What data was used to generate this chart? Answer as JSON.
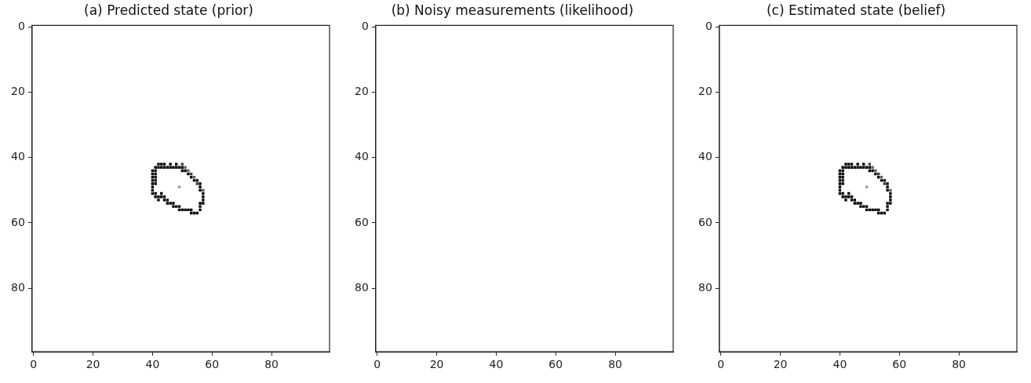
{
  "chart_data": [
    {
      "type": "scatter",
      "title": "(a) Predicted state (prior)",
      "marker": "square",
      "x": [
        42,
        43,
        44,
        46,
        48,
        50,
        41,
        42,
        43,
        44,
        45,
        46,
        47,
        48,
        49,
        50,
        51,
        40,
        41,
        50,
        51,
        52,
        40,
        41,
        52,
        53,
        40,
        41,
        53,
        54,
        40,
        41,
        54,
        55,
        40,
        41,
        55,
        56,
        40,
        49,
        56,
        40,
        56,
        57,
        40,
        41,
        43,
        57,
        41,
        42,
        43,
        44,
        57,
        42,
        44,
        45,
        57,
        45,
        46,
        47,
        56,
        57,
        47,
        48,
        49,
        56,
        49,
        50,
        51,
        52,
        53,
        56,
        53,
        54,
        55
      ],
      "values": [
        42,
        42,
        42,
        42,
        42,
        42,
        43,
        43,
        43,
        43,
        43,
        43,
        43,
        43,
        43,
        43,
        43,
        44,
        44,
        44,
        44,
        44,
        45,
        45,
        45,
        45,
        46,
        46,
        46,
        46,
        47,
        47,
        47,
        47,
        48,
        48,
        48,
        48,
        49,
        49,
        49,
        50,
        50,
        50,
        51,
        51,
        51,
        51,
        52,
        52,
        52,
        52,
        52,
        53,
        53,
        53,
        53,
        54,
        54,
        54,
        54,
        54,
        55,
        55,
        55,
        55,
        56,
        56,
        56,
        56,
        56,
        56,
        57,
        57,
        57
      ],
      "colors": [
        "#000000",
        "#000000",
        "#000000",
        "#000000",
        "#000000",
        "#404040",
        "#000000",
        "#000000",
        "#000000",
        "#000000",
        "#000000",
        "#000000",
        "#000000",
        "#000000",
        "#000000",
        "#000000",
        "#606060",
        "#000000",
        "#000000",
        "#000000",
        "#000000",
        "#606060",
        "#000000",
        "#000000",
        "#000000",
        "#404040",
        "#000000",
        "#000000",
        "#000000",
        "#606060",
        "#000000",
        "#000000",
        "#000000",
        "#000000",
        "#000000",
        "#000000",
        "#404040",
        "#000000",
        "#000000",
        "#a0a0a0",
        "#000000",
        "#000000",
        "#000000",
        "#606060",
        "#000000",
        "#000000",
        "#000000",
        "#000000",
        "#000000",
        "#000000",
        "#000000",
        "#000000",
        "#000000",
        "#000000",
        "#000000",
        "#000000",
        "#000000",
        "#000000",
        "#000000",
        "#000000",
        "#000000",
        "#000000",
        "#000000",
        "#000000",
        "#000000",
        "#000000",
        "#000000",
        "#000000",
        "#000000",
        "#000000",
        "#000000",
        "#000000",
        "#000000",
        "#000000",
        "#000000"
      ],
      "xlim": [
        -0.5,
        99.5
      ],
      "ylim": [
        99.5,
        -0.5
      ],
      "xticks": [
        0,
        20,
        40,
        60,
        80
      ],
      "yticks": [
        0,
        20,
        40,
        60,
        80
      ]
    },
    {
      "type": "scatter",
      "title": "(b) Noisy measurements (likelihood)",
      "marker": "square",
      "xlim": [
        -0.5,
        99.5
      ],
      "ylim": [
        99.5,
        -0.5
      ],
      "xticks": [
        0,
        20,
        40,
        60,
        80
      ],
      "yticks": [
        0,
        20,
        40,
        60,
        80
      ]
    },
    {
      "type": "scatter",
      "title": "(c) Estimated state (belief)",
      "marker": "square",
      "x": [
        42,
        43,
        44,
        46,
        48,
        50,
        41,
        42,
        43,
        44,
        45,
        46,
        47,
        48,
        49,
        50,
        51,
        40,
        41,
        50,
        51,
        52,
        40,
        41,
        52,
        53,
        40,
        41,
        53,
        54,
        40,
        41,
        54,
        55,
        40,
        41,
        55,
        56,
        40,
        49,
        56,
        40,
        56,
        57,
        40,
        41,
        43,
        57,
        41,
        42,
        43,
        44,
        57,
        42,
        44,
        45,
        57,
        45,
        46,
        47,
        56,
        57,
        47,
        48,
        49,
        56,
        49,
        50,
        51,
        52,
        53,
        56,
        53,
        54,
        55
      ],
      "values": [
        42,
        42,
        42,
        42,
        42,
        42,
        43,
        43,
        43,
        43,
        43,
        43,
        43,
        43,
        43,
        43,
        43,
        44,
        44,
        44,
        44,
        44,
        45,
        45,
        45,
        45,
        46,
        46,
        46,
        46,
        47,
        47,
        47,
        47,
        48,
        48,
        48,
        48,
        49,
        49,
        49,
        50,
        50,
        50,
        51,
        51,
        51,
        51,
        52,
        52,
        52,
        52,
        52,
        53,
        53,
        53,
        53,
        54,
        54,
        54,
        54,
        54,
        55,
        55,
        55,
        55,
        56,
        56,
        56,
        56,
        56,
        56,
        57,
        57,
        57
      ],
      "colors": [
        "#000000",
        "#000000",
        "#000000",
        "#000000",
        "#000000",
        "#404040",
        "#000000",
        "#000000",
        "#000000",
        "#000000",
        "#000000",
        "#000000",
        "#000000",
        "#000000",
        "#000000",
        "#000000",
        "#606060",
        "#000000",
        "#000000",
        "#000000",
        "#000000",
        "#606060",
        "#000000",
        "#000000",
        "#000000",
        "#404040",
        "#000000",
        "#000000",
        "#000000",
        "#606060",
        "#000000",
        "#000000",
        "#000000",
        "#000000",
        "#000000",
        "#000000",
        "#404040",
        "#000000",
        "#000000",
        "#a0a0a0",
        "#000000",
        "#000000",
        "#000000",
        "#606060",
        "#000000",
        "#000000",
        "#000000",
        "#000000",
        "#000000",
        "#000000",
        "#000000",
        "#000000",
        "#000000",
        "#000000",
        "#000000",
        "#000000",
        "#000000",
        "#000000",
        "#000000",
        "#000000",
        "#000000",
        "#000000",
        "#000000",
        "#000000",
        "#000000",
        "#000000",
        "#000000",
        "#000000",
        "#000000",
        "#000000",
        "#000000",
        "#000000",
        "#000000",
        "#000000",
        "#000000"
      ],
      "xlim": [
        -0.5,
        99.5
      ],
      "ylim": [
        99.5,
        -0.5
      ],
      "xticks": [
        0,
        20,
        40,
        60,
        80
      ],
      "yticks": [
        0,
        20,
        40,
        60,
        80
      ]
    }
  ]
}
